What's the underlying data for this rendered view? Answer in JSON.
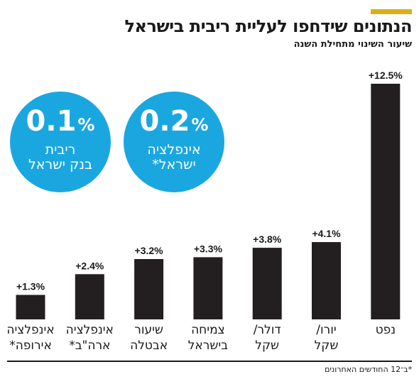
{
  "header": {
    "title": "הנתונים שידחפו לעליית ריבית בישראל",
    "subtitle": "שיעור השינוי מתחילת השנה"
  },
  "colors": {
    "bar": "#231f20",
    "bubble": "#1aa7df",
    "accent": "#d8b01a",
    "text": "#1a1a1a"
  },
  "bubbles": [
    {
      "value": "0.1",
      "unit": "%",
      "label_line1": "ריבית",
      "label_line2": "בנק ישראל"
    },
    {
      "value": "0.2",
      "unit": "%",
      "label_line1": "אינפלציה",
      "label_line2": "ישראל*"
    }
  ],
  "chart_data": {
    "type": "bar",
    "categories": [
      "אינפלציה\nאירופה*",
      "אינפלציה\nארה\"ב*",
      "שיעור\nאבטלה",
      "צמיחה\nבישראל",
      "דולר/\nשקל",
      "יורו/\nשקל",
      "נפט"
    ],
    "values": [
      1.3,
      2.4,
      3.2,
      3.3,
      3.8,
      4.1,
      12.5
    ],
    "value_labels": [
      "+1.3%",
      "+2.4%",
      "+3.2%",
      "+3.3%",
      "+3.8%",
      "+4.1%",
      "+12.5%"
    ],
    "title": "הנתונים שידחפו לעליית ריבית בישראל",
    "subtitle": "שיעור השינוי מתחילת השנה",
    "xlabel": "",
    "ylabel": "",
    "ylim": [
      0,
      12.5
    ],
    "grid": false,
    "legend": "none"
  },
  "footnote": "*ב־12 החודשים האחרונים"
}
